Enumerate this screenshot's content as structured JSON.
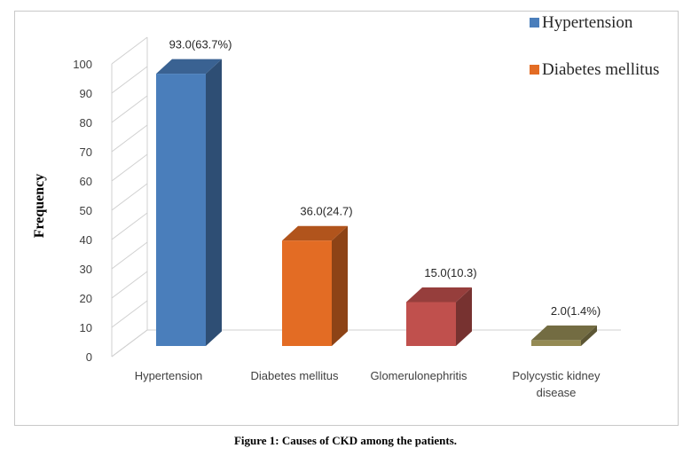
{
  "chart_data": {
    "type": "bar",
    "categories": [
      "Hypertension",
      "Diabetes mellitus",
      "Glomerulonephritis",
      "Polycystic kidney disease"
    ],
    "category_lines": [
      [
        "Hypertension"
      ],
      [
        "Diabetes mellitus"
      ],
      [
        "Glomerulonephritis"
      ],
      [
        "Polycystic kidney",
        "disease"
      ]
    ],
    "values": [
      93.0,
      36.0,
      15.0,
      2.0
    ],
    "data_labels": [
      "93.0(63.7%)",
      "36.0(24.7)",
      "15.0(10.3)",
      "2.0(1.4%)"
    ],
    "colors": [
      "#4a7ebb",
      "#e36c24",
      "#c0504d",
      "#948a54"
    ],
    "ylabel": "Frequency",
    "xlabel": "",
    "ylim": [
      0,
      100
    ],
    "yticks": [
      0,
      10,
      20,
      30,
      40,
      50,
      60,
      70,
      80,
      90,
      100
    ],
    "style": "3d-column",
    "grid": false,
    "legend": {
      "placement": "top-right",
      "entries": [
        {
          "label": "Hypertension",
          "color": "#4a7ebb"
        },
        {
          "label": "Diabetes mellitus",
          "color": "#e36c24"
        }
      ]
    }
  },
  "caption": "Figure 1: Causes of CKD among the patients."
}
